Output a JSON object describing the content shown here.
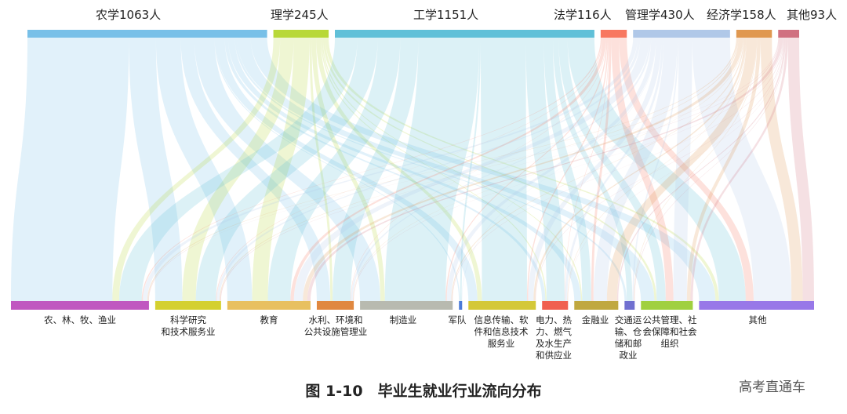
{
  "chart_data": {
    "type": "sankey",
    "title": "图 1-10　毕业生就业行业流向分布",
    "sources": [
      {
        "name": "农学",
        "label": "农学1063人",
        "value": 1063,
        "color": "#78c0e8"
      },
      {
        "name": "理学",
        "label": "理学245人",
        "value": 245,
        "color": "#b8d838"
      },
      {
        "name": "工学",
        "label": "工学1151人",
        "value": 1151,
        "color": "#60c0d8"
      },
      {
        "name": "法学",
        "label": "法学116人",
        "value": 116,
        "color": "#f87860"
      },
      {
        "name": "管理学",
        "label": "管理学430人",
        "value": 430,
        "color": "#b0c8e8"
      },
      {
        "name": "经济学",
        "label": "经济学158人",
        "value": 158,
        "color": "#e09850"
      },
      {
        "name": "其他",
        "label": "其他93人",
        "value": 93,
        "color": "#d07080"
      }
    ],
    "targets": [
      {
        "label": "农、林、牧、渔业",
        "color": "#c058c0"
      },
      {
        "label": "科学研究\n和技术服务业",
        "color": "#d4d030"
      },
      {
        "label": "教育",
        "color": "#e8c060"
      },
      {
        "label": "水利、环境和\n公共设施管理业",
        "color": "#e08840"
      },
      {
        "label": "制造业",
        "color": "#b8bab0"
      },
      {
        "label": "军队",
        "color": "#4a7ad8"
      },
      {
        "label": "信息传输、软\n件和信息技术\n服务业",
        "color": "#d4c838"
      },
      {
        "label": "电力、热\n力、燃气\n及水生产\n和供应业",
        "color": "#f06050"
      },
      {
        "label": "金融业",
        "color": "#c0a840"
      },
      {
        "label": "交通运\n输、仓\n储和邮\n政业",
        "color": "#7070d0"
      },
      {
        "label": "公共管理、社\n会保障和社会\n组织",
        "color": "#a0d040"
      },
      {
        "label": "其他",
        "color": "#9878e8"
      }
    ],
    "flows": [
      [
        450,
        120,
        110,
        60,
        90,
        5,
        40,
        15,
        30,
        10,
        60,
        73
      ],
      [
        30,
        60,
        70,
        10,
        20,
        0,
        20,
        5,
        5,
        0,
        10,
        15
      ],
      [
        100,
        90,
        100,
        80,
        270,
        7,
        200,
        80,
        40,
        25,
        40,
        119
      ],
      [
        5,
        3,
        15,
        2,
        5,
        0,
        5,
        2,
        10,
        0,
        34,
        35
      ],
      [
        20,
        12,
        40,
        8,
        20,
        2,
        24,
        10,
        60,
        6,
        60,
        168
      ],
      [
        5,
        4,
        20,
        2,
        4,
        0,
        8,
        2,
        45,
        2,
        16,
        50
      ],
      [
        2,
        3,
        14,
        2,
        2,
        0,
        2,
        1,
        5,
        2,
        10,
        50
      ]
    ]
  },
  "figure": {
    "title": "图 1-10　毕业生就业行业流向分布",
    "watermark": "高考直通车"
  }
}
